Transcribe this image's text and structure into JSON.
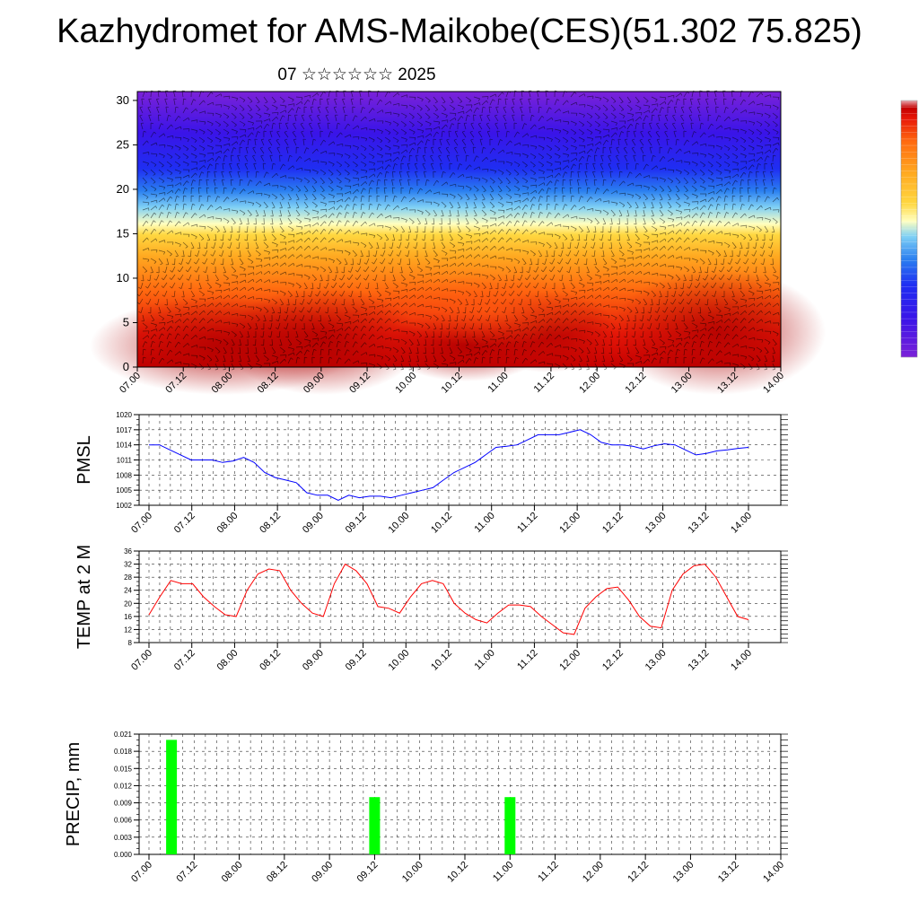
{
  "header": {
    "title": "Kazhydromet for AMS-Maikobe(CES)(51.302 75.825)",
    "subtitle": "07 ☆☆☆☆☆☆ 2025"
  },
  "chart_data": [
    {
      "type": "heatmap",
      "title": "",
      "xlabel": "",
      "ylabel": "",
      "x_tick_labels": [
        "07.00",
        "07.12",
        "08.00",
        "08.12",
        "09.00",
        "09.12",
        "10.00",
        "10.12",
        "11.00",
        "11.12",
        "12.00",
        "12.12",
        "13.00",
        "13.12",
        "14.00"
      ],
      "y_ticks": [
        0,
        5,
        10,
        15,
        20,
        25,
        30
      ],
      "ylim": [
        0,
        31
      ],
      "color_scale": [
        "#7b22d8",
        "#3a14e8",
        "#1f2ef2",
        "#2a7ef0",
        "#7fd0f5",
        "#ffffc0",
        "#ffd740",
        "#ffa820",
        "#ff6a10",
        "#e81808",
        "#c40000",
        "#e8aab0"
      ],
      "overlay": "wind barbs"
    },
    {
      "type": "line",
      "title": "",
      "ylabel": "PMSL",
      "ylim": [
        1002,
        1020
      ],
      "y_ticks": [
        1002,
        1005,
        1008,
        1011,
        1014,
        1017,
        1020
      ],
      "x_tick_labels": [
        "07.00",
        "07.12",
        "08.00",
        "08.12",
        "09.00",
        "09.12",
        "10.00",
        "10.12",
        "11.00",
        "11.12",
        "12.00",
        "12.12",
        "13.00",
        "13.12",
        "14.00"
      ],
      "x_step_hours": 3,
      "color": "#0000ff",
      "values": [
        1014.0,
        1014.0,
        1013.0,
        1012.0,
        1011.0,
        1011.0,
        1011.0,
        1010.5,
        1010.8,
        1011.5,
        1010.5,
        1008.5,
        1007.5,
        1007.0,
        1006.5,
        1004.5,
        1004.0,
        1004.0,
        1003.0,
        1004.0,
        1003.5,
        1003.8,
        1003.8,
        1003.5,
        1004.0,
        1004.5,
        1005.0,
        1005.5,
        1007.0,
        1008.5,
        1009.5,
        1010.5,
        1012.0,
        1013.5,
        1013.7,
        1014.0,
        1015.0,
        1016.0,
        1016.0,
        1016.0,
        1016.5,
        1017.0,
        1016.0,
        1014.5,
        1014.0,
        1014.0,
        1013.7,
        1013.2,
        1013.8,
        1014.2,
        1014.0,
        1013.0,
        1012.0,
        1012.3,
        1012.8,
        1013.0,
        1013.3,
        1013.5
      ]
    },
    {
      "type": "line",
      "title": "",
      "ylabel": "TEMP at 2 M",
      "ylim": [
        8,
        36
      ],
      "y_ticks": [
        8,
        12,
        16,
        20,
        24,
        28,
        32,
        36
      ],
      "x_tick_labels": [
        "07.00",
        "07.12",
        "08.00",
        "08.12",
        "09.00",
        "09.12",
        "10.00",
        "10.12",
        "11.00",
        "11.12",
        "12.00",
        "12.12",
        "13.00",
        "13.12",
        "14.00"
      ],
      "x_step_hours": 3,
      "color": "#ff0000",
      "values": [
        16.5,
        22.0,
        27.0,
        26.0,
        26.0,
        22.0,
        19.0,
        16.5,
        16.0,
        24.0,
        29.0,
        30.5,
        30.0,
        24.0,
        20.0,
        17.0,
        16.0,
        26.0,
        32.0,
        30.0,
        26.0,
        19.0,
        18.5,
        17.0,
        22.0,
        26.0,
        27.0,
        26.0,
        20.0,
        17.0,
        15.0,
        14.0,
        17.0,
        19.5,
        19.5,
        19.0,
        16.0,
        13.5,
        11.0,
        10.5,
        18.5,
        22.0,
        24.5,
        25.0,
        21.0,
        16.0,
        13.0,
        12.5,
        24.0,
        29.0,
        31.5,
        32.0,
        28.0,
        22.0,
        16.0,
        15.0
      ]
    },
    {
      "type": "bar",
      "title": "",
      "ylabel": "PRECIP, mm",
      "ylim": [
        0,
        0.021
      ],
      "y_ticks": [
        "0.000",
        "0.003",
        "0.006",
        "0.009",
        "0.012",
        "0.015",
        "0.018",
        "0.021"
      ],
      "x_tick_labels": [
        "07.00",
        "07.12",
        "08.00",
        "08.12",
        "09.00",
        "09.12",
        "10.00",
        "10.12",
        "11.00",
        "11.12",
        "12.00",
        "12.12",
        "13.00",
        "13.12",
        "14.00"
      ],
      "color": "#00ff00",
      "bars": [
        {
          "x": "07.06",
          "value": 0.02
        },
        {
          "x": "09.12",
          "value": 0.01
        },
        {
          "x": "11.00",
          "value": 0.01
        }
      ]
    }
  ]
}
